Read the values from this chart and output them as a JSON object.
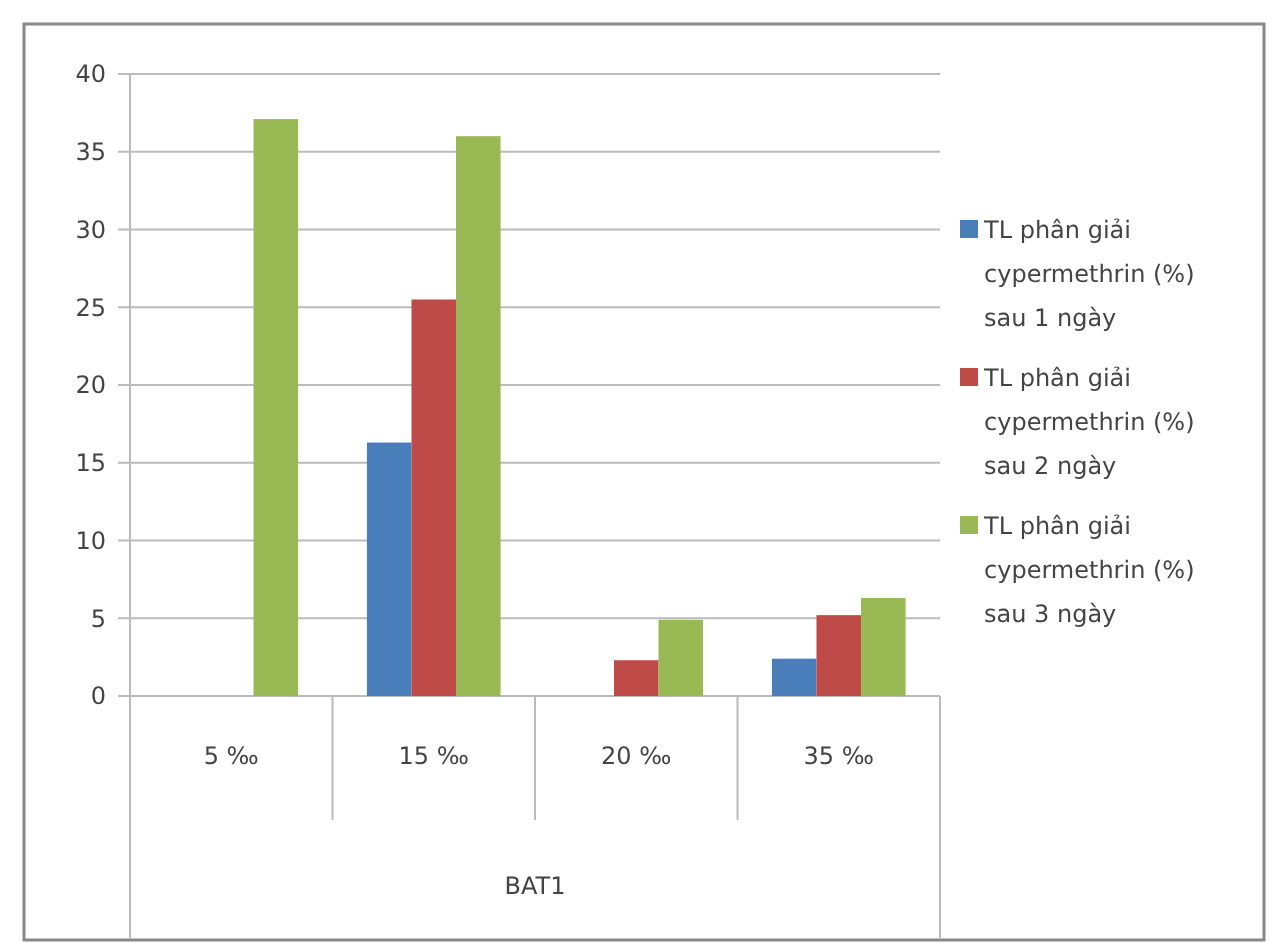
{
  "chart_data": {
    "type": "bar",
    "xlabel": "BAT1",
    "categories": [
      "5 ‰",
      "15 ‰",
      "20 ‰",
      "35 ‰"
    ],
    "series": [
      {
        "name": "TL phân giải cypermethrin (%) sau 1 ngày",
        "color": "#4a7ebb",
        "values": [
          0,
          16.3,
          0,
          2.4
        ]
      },
      {
        "name": "TL phân giải cypermethrin (%) sau 2 ngày",
        "color": "#be4b48",
        "values": [
          0,
          25.5,
          2.3,
          5.2
        ]
      },
      {
        "name": "TL phân giải cypermethrin (%) sau 3 ngày",
        "color": "#98b954",
        "values": [
          37.1,
          36.0,
          4.9,
          6.3
        ]
      }
    ],
    "ylim": [
      0,
      40
    ],
    "yticks": [
      0,
      5,
      10,
      15,
      20,
      25,
      30,
      35,
      40
    ],
    "grid": "y",
    "legend": "right"
  }
}
